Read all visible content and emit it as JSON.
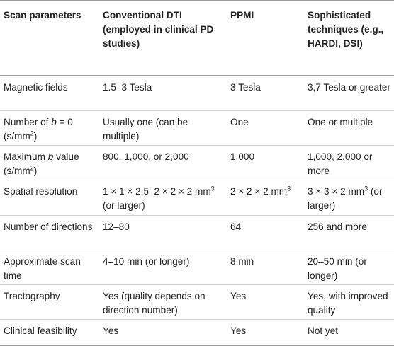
{
  "headers": [
    "Scan parameters",
    "Conventional DTI (employed in clinical PD studies)",
    "PPMI",
    "Sophisticated techniques (e.g., HARDI, DSI)"
  ],
  "rows": [
    {
      "param": "Magnetic fields",
      "dti": "1.5–3 Tesla",
      "ppmi": "3 Tesla",
      "soph": "3,7 Tesla or greater"
    },
    {
      "param_pre": "Number of ",
      "param_var": "b",
      "param_mid": " = 0 (s/mm",
      "param_sup": "2",
      "param_post": ")",
      "dti": "Usually one (can be multiple)",
      "ppmi": "One",
      "soph": "One or multiple"
    },
    {
      "param_pre": "Maximum ",
      "param_var": "b",
      "param_mid": " value (s/mm",
      "param_sup": "2",
      "param_post": ")",
      "dti": "800, 1,000, or 2,000",
      "ppmi": "1,000",
      "soph": "1,000, 2,000 or more"
    },
    {
      "param": "Spatial resolution",
      "dti_pre": "1 × 1 × 2.5–2 × 2 × 2 mm",
      "dti_sup": "3",
      "dti_post": " (or larger)",
      "ppmi_pre": "2 × 2 × 2 mm",
      "ppmi_sup": "3",
      "ppmi_post": "",
      "soph_pre": "3 × 3 × 2 mm",
      "soph_sup": "3",
      "soph_post": " (or larger)"
    },
    {
      "param": "Number of directions",
      "dti": "12–80",
      "ppmi": "64",
      "soph": "256 and more"
    },
    {
      "param": "Approximate scan time",
      "dti": "4–10 min (or longer)",
      "ppmi": "8 min",
      "soph": "20–50 min (or longer)"
    },
    {
      "param": "Tractography",
      "dti": "Yes (quality depends on direction number)",
      "ppmi": "Yes",
      "soph": "Yes, with improved quality"
    },
    {
      "param": "Clinical feasibility",
      "dti": "Yes",
      "ppmi": "Yes",
      "soph": "Not yet"
    }
  ]
}
